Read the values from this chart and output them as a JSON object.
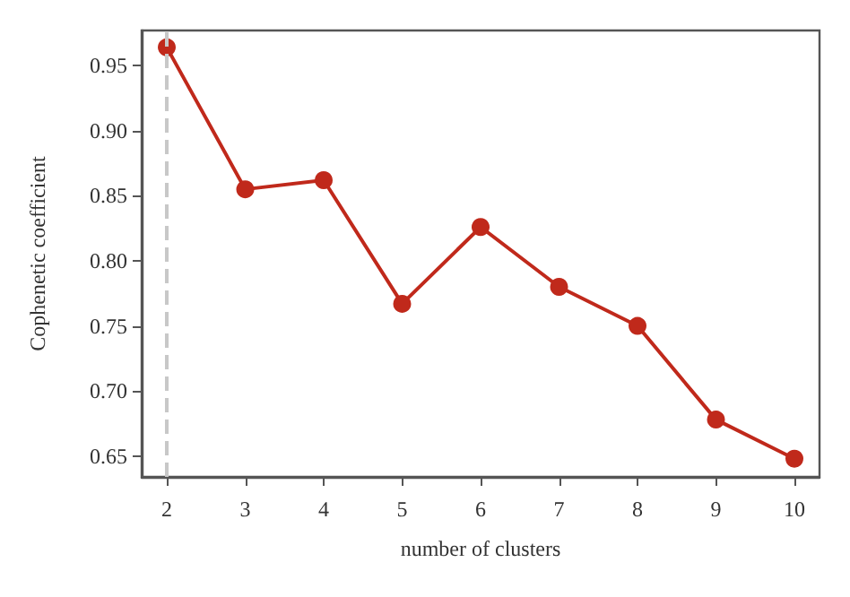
{
  "chart_data": {
    "type": "line",
    "xlabel": "number of clusters",
    "ylabel": "Cophenetic coefficient",
    "x": [
      2,
      3,
      4,
      5,
      6,
      7,
      8,
      9,
      10
    ],
    "series": [
      {
        "color": "#c0291b",
        "values": [
          0.964,
          0.855,
          0.862,
          0.767,
          0.826,
          0.78,
          0.75,
          0.678,
          0.648
        ]
      }
    ],
    "xlim": [
      1.68,
      10.32
    ],
    "xticks": [
      2,
      3,
      4,
      5,
      6,
      7,
      8,
      9,
      10
    ],
    "ylim": [
      0.634,
      0.977
    ],
    "yticks": [
      0.65,
      {
        "value": 0.7,
        "label": "0.70"
      },
      0.75,
      {
        "value": 0.8,
        "label": "0.80"
      },
      0.85,
      {
        "value": 0.9,
        "label": "0.90"
      },
      0.95
    ],
    "ref_lines": [
      {
        "axis": "x",
        "value": 2,
        "color": "#c8c8c8",
        "line_style": "dashed"
      }
    ],
    "marker": "circle",
    "line_style": "solid",
    "grid": false
  }
}
